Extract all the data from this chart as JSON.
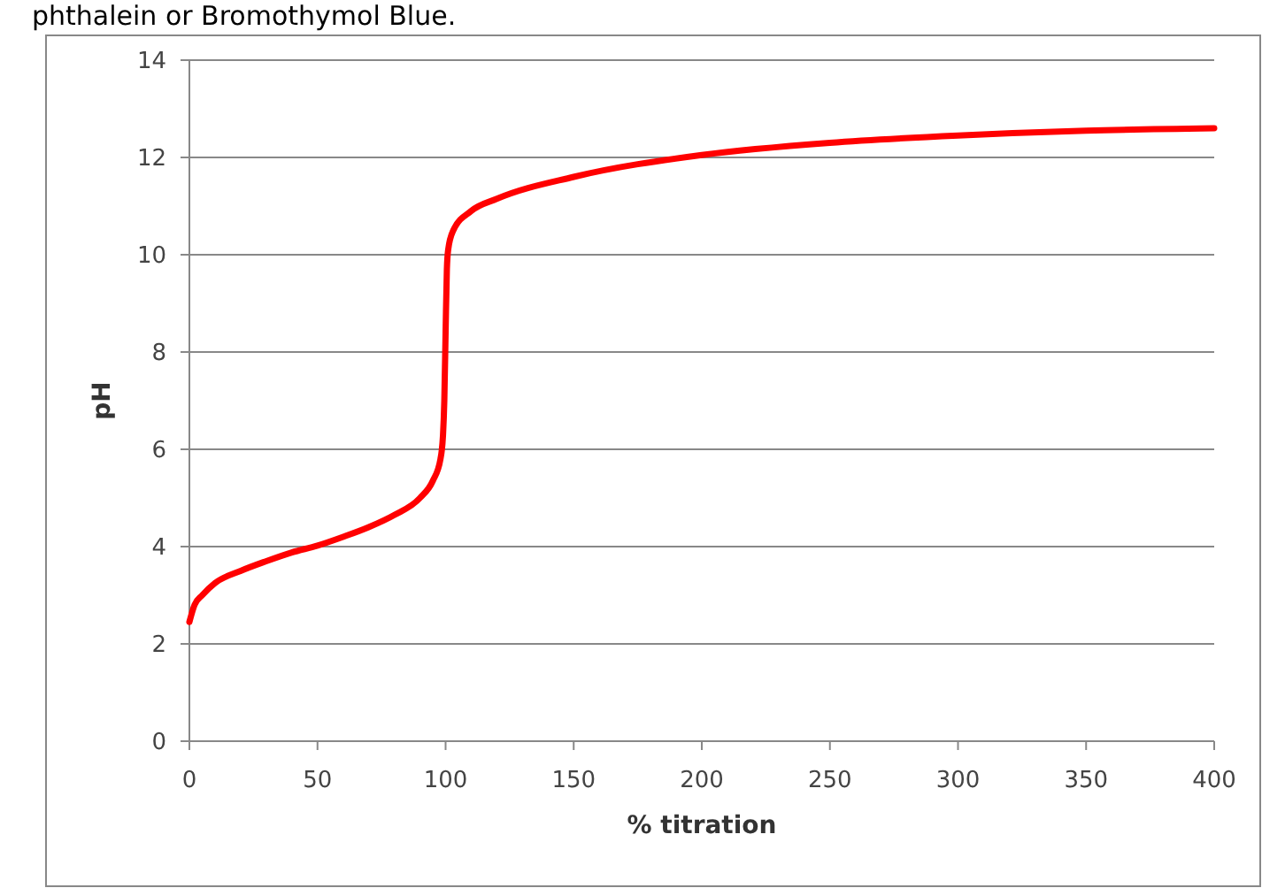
{
  "chart_data": {
    "type": "line",
    "xlabel": "% titration",
    "ylabel": "pH",
    "annotations": [
      "phthalein or Bromothymol Blue."
    ],
    "x": [
      0,
      2,
      5,
      10,
      20,
      30,
      40,
      50,
      60,
      70,
      80,
      90,
      95,
      98,
      99,
      99.5,
      100,
      100.5,
      101,
      103,
      110,
      120,
      150,
      200,
      250,
      300,
      350,
      400
    ],
    "series": [
      {
        "color": "#ff0000",
        "values": [
          2.45,
          2.8,
          3.0,
          3.25,
          3.5,
          3.7,
          3.88,
          4.02,
          4.2,
          4.4,
          4.65,
          5.0,
          5.35,
          5.8,
          6.3,
          7.0,
          8.4,
          9.7,
          10.1,
          10.5,
          10.9,
          11.15,
          11.6,
          12.05,
          12.3,
          12.45,
          12.55,
          12.6
        ]
      }
    ],
    "xlim": [
      0,
      400
    ],
    "xticks": [
      0,
      50,
      100,
      150,
      200,
      250,
      300,
      350,
      400
    ],
    "ylim": [
      0,
      14
    ],
    "yticks": [
      0,
      2,
      4,
      6,
      8,
      10,
      12,
      14
    ],
    "grid": "y",
    "marker": "none",
    "line_style": "solid"
  }
}
